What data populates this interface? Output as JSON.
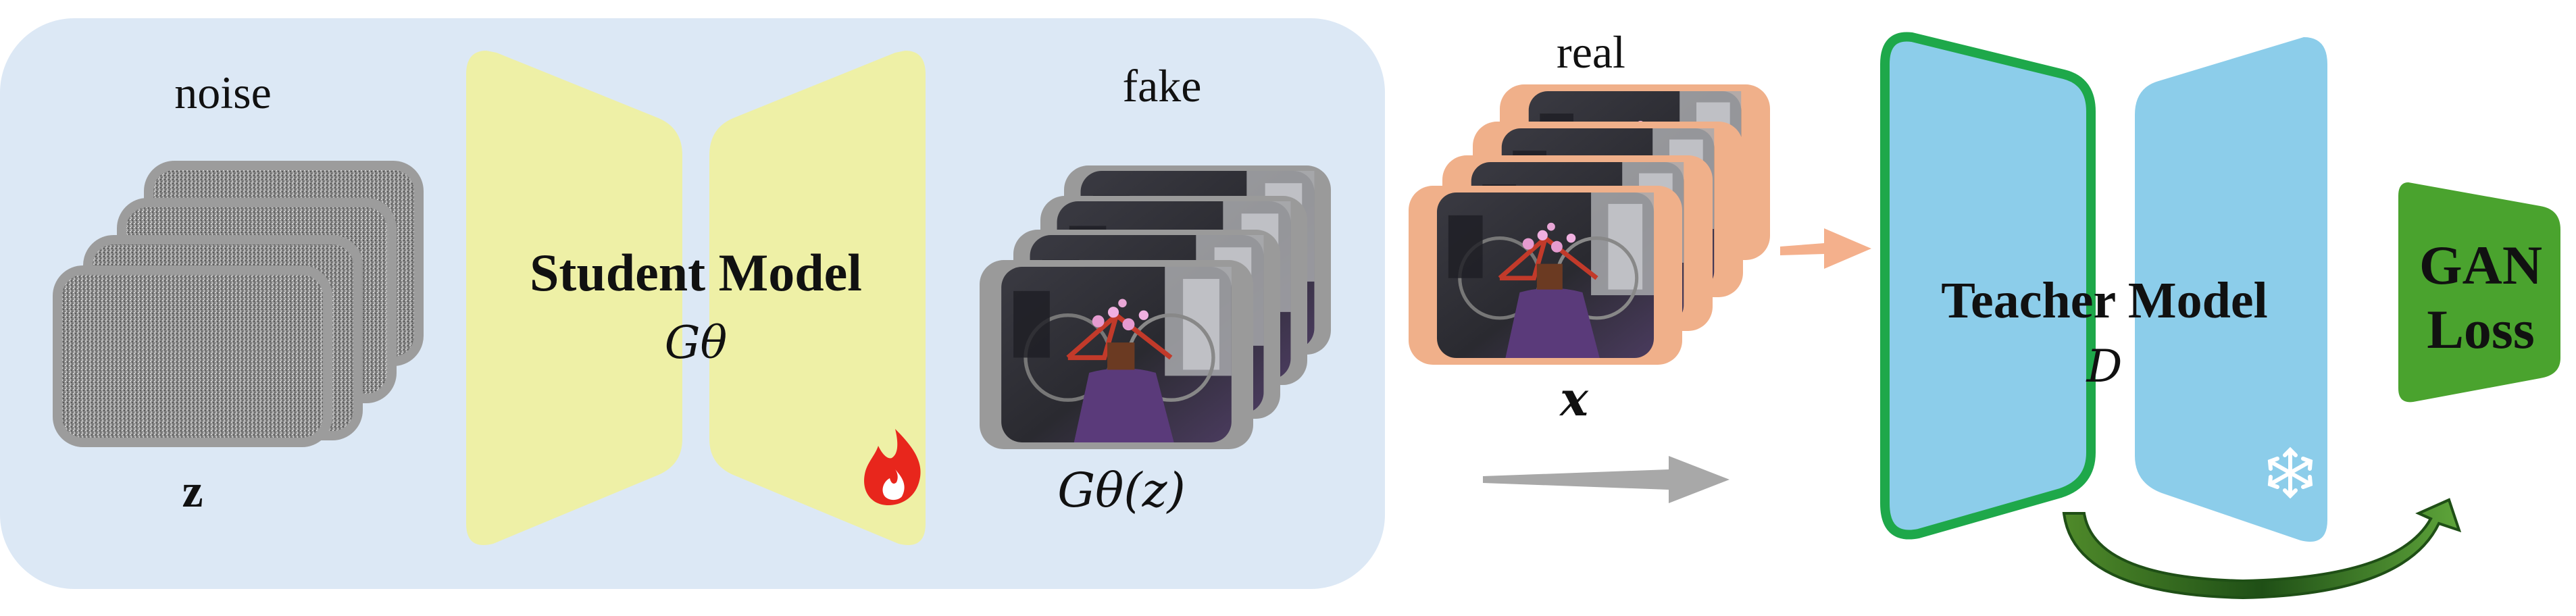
{
  "generator_panel": {
    "noise_label": "noise",
    "noise_symbol": "z",
    "student_title": "Student Model",
    "student_symbol": "Gθ",
    "fake_label": "fake",
    "fake_symbol": "Gθ(z)",
    "trainable_icon": "fire-icon"
  },
  "real_group": {
    "real_label": "real",
    "real_symbol": "x"
  },
  "teacher": {
    "title": "Teacher Model",
    "symbol": "D",
    "frozen_icon": "snowflake-icon"
  },
  "loss": {
    "line1": "GAN",
    "line2": "Loss"
  },
  "colors": {
    "panel_bg": "#dce8f5",
    "student_fill": "#eef0a6",
    "teacher_fill": "#8ccdea",
    "teacher_border": "#1ea84a",
    "loss_fill": "#4aa32e",
    "real_border": "#f0b08a",
    "fake_border": "#9a9a9a",
    "arrow_gray": "#a8a8a8",
    "arrow_orange": "#f4b08c",
    "curve_arrow": "#2f6b1f"
  }
}
